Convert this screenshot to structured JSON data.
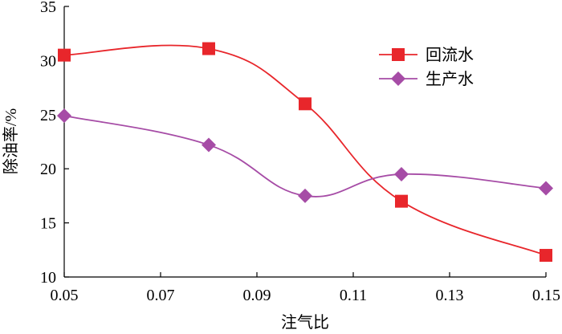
{
  "chart_data": {
    "type": "line",
    "title": "",
    "xlabel": "注气比",
    "ylabel": "除油率/%",
    "x": [
      0.05,
      0.08,
      0.1,
      0.12,
      0.15
    ],
    "xlim": [
      0.05,
      0.15
    ],
    "ylim": [
      10,
      35
    ],
    "xticks": [
      "0.05",
      "0.07",
      "0.09",
      "0.11",
      "0.13",
      "0.15"
    ],
    "yticks": [
      "10",
      "15",
      "20",
      "25",
      "30",
      "35"
    ],
    "grid": false,
    "legend_position": "top-right",
    "series": [
      {
        "name": "回流水",
        "marker": "square",
        "color": "#e8262b",
        "values": [
          30.5,
          31.1,
          26.0,
          17.0,
          12.0
        ]
      },
      {
        "name": "生产水",
        "marker": "diamond",
        "color": "#a64ca6",
        "values": [
          24.9,
          22.2,
          17.5,
          19.5,
          18.2
        ]
      }
    ]
  }
}
